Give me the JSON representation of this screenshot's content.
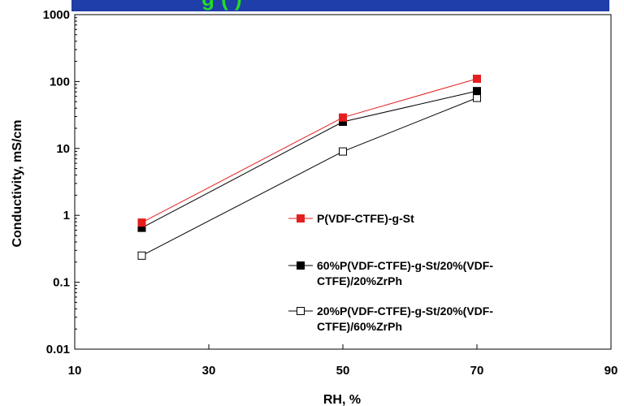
{
  "banner": {
    "visible_title_fragment": "g                (    )"
  },
  "chart_data": {
    "type": "line",
    "title": "",
    "xlabel": "RH, %",
    "ylabel": "Conductivity, mS/cm",
    "xlim": [
      10,
      90
    ],
    "ylim": [
      0.01,
      1000
    ],
    "yscale": "log",
    "x_ticks": [
      10,
      30,
      50,
      70,
      90
    ],
    "y_ticks": [
      0.01,
      0.1,
      1,
      10,
      100,
      1000
    ],
    "y_tick_labels": [
      "0.01",
      "0.1",
      "1",
      "10",
      "100",
      "1000"
    ],
    "x_tick_labels": [
      "10",
      "30",
      "50",
      "70",
      "90"
    ],
    "grid": false,
    "legend_position": "right-inside",
    "series": [
      {
        "name": "P(VDF-CTFE)-g-St",
        "legend_lines": [
          "P(VDF-CTFE)-g-St"
        ],
        "color": "#e41f1f",
        "marker": "filled-square",
        "x": [
          20,
          50,
          70
        ],
        "y": [
          0.78,
          29,
          110
        ]
      },
      {
        "name": "60%P(VDF-CTFE)-g-St/20%(VDF-CTFE)/20%ZrPh",
        "legend_lines": [
          "60%P(VDF-CTFE)-g-St/20%(VDF-",
          "CTFE)/20%ZrPh"
        ],
        "color": "#000000",
        "marker": "filled-square",
        "x": [
          20,
          50,
          70
        ],
        "y": [
          0.65,
          25,
          72
        ]
      },
      {
        "name": "20%P(VDF-CTFE)-g-St/20%(VDF-CTFE)/60%ZrPh",
        "legend_lines": [
          "20%P(VDF-CTFE)-g-St/20%(VDF-",
          "CTFE)/60%ZrPh"
        ],
        "color": "#000000",
        "marker": "open-square",
        "x": [
          20,
          50,
          70
        ],
        "y": [
          0.25,
          9,
          57
        ]
      }
    ]
  }
}
